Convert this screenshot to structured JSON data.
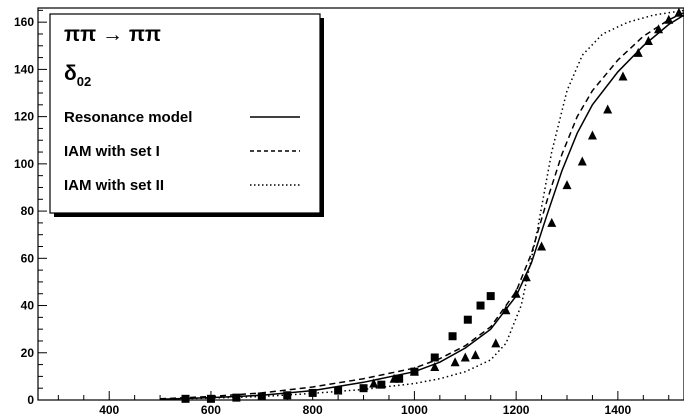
{
  "chart_data": {
    "type": "line",
    "title": "",
    "xlabel": "",
    "ylabel": "",
    "xlim": [
      260,
      1530
    ],
    "ylim": [
      0,
      166
    ],
    "x_ticks": [
      400,
      600,
      800,
      1000,
      1200,
      1400
    ],
    "y_ticks": [
      0,
      20,
      40,
      60,
      80,
      100,
      120,
      140,
      160
    ],
    "grid": false,
    "legend_position": "top-left",
    "legend": {
      "process": "ππ → ππ",
      "quantity": "δ",
      "quantity_sub": "02",
      "entries": [
        {
          "label": "Resonance model",
          "style": "solid"
        },
        {
          "label": "IAM with set I",
          "style": "dashed"
        },
        {
          "label": "IAM with set II",
          "style": "dotted"
        }
      ]
    },
    "series": [
      {
        "name": "Resonance model",
        "style": "solid",
        "x": [
          500,
          600,
          700,
          800,
          900,
          1000,
          1050,
          1100,
          1150,
          1200,
          1230,
          1260,
          1290,
          1320,
          1350,
          1400,
          1450,
          1500,
          1530
        ],
        "y": [
          0.3,
          1,
          2,
          4,
          7.5,
          12,
          16,
          22,
          30,
          44,
          58,
          78,
          97,
          113,
          125,
          139,
          150,
          159,
          163
        ]
      },
      {
        "name": "IAM with set I",
        "style": "dashed",
        "x": [
          500,
          600,
          700,
          800,
          900,
          1000,
          1050,
          1100,
          1150,
          1200,
          1230,
          1260,
          1290,
          1320,
          1350,
          1400,
          1450,
          1500,
          1530
        ],
        "y": [
          0.5,
          1.5,
          3,
          5.5,
          9,
          13.5,
          17.5,
          23,
          31,
          46,
          62,
          84,
          104,
          120,
          131,
          144,
          154,
          161,
          164
        ]
      },
      {
        "name": "IAM with set II",
        "style": "dotted",
        "x": [
          500,
          600,
          700,
          800,
          900,
          1000,
          1050,
          1100,
          1150,
          1180,
          1210,
          1240,
          1270,
          1300,
          1330,
          1370,
          1420,
          1470,
          1530
        ],
        "y": [
          0.3,
          0.8,
          1.5,
          2.8,
          4.5,
          7,
          9,
          12,
          17,
          24,
          40,
          70,
          105,
          131,
          146,
          155,
          160,
          163,
          165
        ]
      },
      {
        "name": "",
        "marker": "square",
        "x": [
          550,
          600,
          650,
          700,
          750,
          800,
          850,
          900,
          935,
          970,
          1000,
          1040,
          1075,
          1105,
          1130,
          1150
        ],
        "y": [
          0.5,
          0.5,
          1,
          1.5,
          2,
          3,
          4,
          5,
          6.5,
          9,
          12,
          18,
          27,
          34,
          40,
          44
        ]
      },
      {
        "name": "",
        "marker": "triangle",
        "x": [
          920,
          960,
          1000,
          1040,
          1080,
          1100,
          1120,
          1160,
          1180,
          1200,
          1220,
          1250,
          1270,
          1300,
          1330,
          1350,
          1380,
          1410,
          1440,
          1460,
          1480,
          1500,
          1520
        ],
        "y": [
          7,
          9,
          12,
          14,
          16,
          18,
          19,
          24,
          38,
          45,
          52,
          65,
          75,
          91,
          101,
          112,
          123,
          137,
          147,
          152,
          157,
          161,
          164
        ]
      }
    ]
  }
}
